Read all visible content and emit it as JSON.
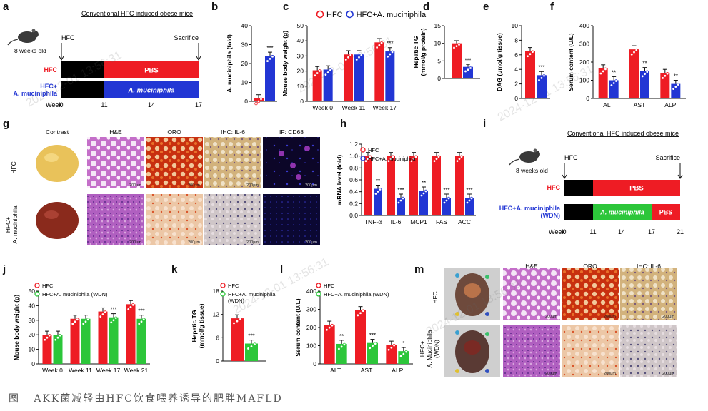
{
  "colors": {
    "hfc": "#ee1c24",
    "akk": "#2236d4",
    "wdn": "#2cc63a",
    "black": "#000000"
  },
  "watermark": "2024-12-01 13:56:31",
  "caption": {
    "prefix": "图",
    "text": "AKK菌减轻由HFC饮食喂养诱导的肥胖MAFLD"
  },
  "panel_a": {
    "letter": "a",
    "title": "Conventional HFC induced obese mice",
    "mouse_label": "8 weeks old",
    "start_label": "HFC",
    "end_label": "Sacrifice",
    "rows": [
      {
        "label": "HFC",
        "segment": "PBS"
      },
      {
        "label": "HFC+\nA. muciniphila",
        "segment": "A. muciniphila"
      }
    ],
    "week_label": "Week",
    "week_ticks": [
      "0",
      "11",
      "14",
      "17"
    ]
  },
  "panel_g": {
    "letter": "g",
    "columns": [
      "Contrast",
      "H&E",
      "ORO",
      "IHC: IL-6",
      "IF: CD68"
    ],
    "rows": [
      "HFC",
      "HFC+\nA. muciniphila"
    ],
    "scale": "200μm"
  },
  "panel_i": {
    "letter": "i",
    "title": "Conventional HFC induced obese mice",
    "mouse_label": "8 weeks old",
    "start_label": "HFC",
    "end_label": "Sacrifice",
    "rows": [
      {
        "label": "HFC",
        "segment": "PBS"
      },
      {
        "label": "HFC+A. muciniphila\n(WDN)",
        "segment_a": "A. muciniphila",
        "segment_b": "PBS"
      }
    ],
    "week_label": "Week",
    "week_ticks": [
      "0",
      "11",
      "14",
      "17",
      "21"
    ]
  },
  "panel_m": {
    "letter": "m",
    "columns": [
      "H&E",
      "ORO",
      "IHC: IL-6"
    ],
    "rows": [
      "HFC",
      "HFC+\nA. Muciniphila\n(WDN)"
    ],
    "scale": "200μm"
  },
  "chart_data": [
    {
      "id": "b",
      "type": "bar",
      "ylabel": "A. muciniphila (fold)",
      "categories": [
        ""
      ],
      "series": [
        {
          "values": [
            1.5
          ],
          "color": "hfc"
        },
        {
          "values": [
            24
          ],
          "color": "akk"
        }
      ],
      "ylim": [
        0,
        40
      ],
      "yticks": [
        0,
        10,
        20,
        30,
        40
      ],
      "stars": [
        "***"
      ]
    },
    {
      "id": "c",
      "type": "bar",
      "ylabel": "Mouse body weight (g)",
      "categories": [
        "Week 0",
        "Week 11",
        "Week 17"
      ],
      "series": [
        {
          "name": "HFC",
          "values": [
            20.5,
            31,
            39
          ],
          "color": "hfc"
        },
        {
          "name": "HFC+A. muciniphila",
          "values": [
            21,
            31,
            33
          ],
          "color": "akk"
        }
      ],
      "ylim": [
        0,
        50
      ],
      "yticks": [
        0,
        10,
        20,
        30,
        40,
        50
      ],
      "stars": [
        "",
        "",
        "***"
      ]
    },
    {
      "id": "d",
      "type": "bar",
      "ylabel": "Hepatic TG\n(mmol/g protein)",
      "categories": [
        ""
      ],
      "series": [
        {
          "values": [
            10
          ],
          "color": "hfc"
        },
        {
          "values": [
            3.3
          ],
          "color": "akk"
        }
      ],
      "ylim": [
        0,
        15
      ],
      "yticks": [
        0,
        5,
        10,
        15
      ],
      "stars": [
        "***"
      ]
    },
    {
      "id": "e",
      "type": "bar",
      "ylabel": "DAG (μmol/g tissue)",
      "categories": [
        ""
      ],
      "series": [
        {
          "values": [
            6.5
          ],
          "color": "hfc"
        },
        {
          "values": [
            3.2
          ],
          "color": "akk"
        }
      ],
      "ylim": [
        0,
        10
      ],
      "yticks": [
        0,
        2,
        4,
        6,
        8,
        10
      ],
      "stars": [
        "***"
      ]
    },
    {
      "id": "f",
      "type": "bar",
      "ylabel": "Serum content (U/L)",
      "categories": [
        "ALT",
        "AST",
        "ALP"
      ],
      "series": [
        {
          "values": [
            165,
            270,
            140
          ],
          "color": "hfc"
        },
        {
          "values": [
            100,
            150,
            80
          ],
          "color": "akk"
        }
      ],
      "ylim": [
        0,
        400
      ],
      "yticks": [
        0,
        100,
        200,
        300,
        400
      ],
      "stars": [
        "**",
        "**",
        "**"
      ]
    },
    {
      "id": "h",
      "type": "bar",
      "ylabel": "mRNA level (fold)",
      "categories": [
        "TNF-α",
        "IL-6",
        "MCP1",
        "FAS",
        "ACC"
      ],
      "series": [
        {
          "name": "HFC",
          "values": [
            1.0,
            1.0,
            1.0,
            1.0,
            1.0
          ],
          "color": "hfc"
        },
        {
          "name": "HFC+A. muciniphila",
          "values": [
            0.45,
            0.3,
            0.42,
            0.3,
            0.3
          ],
          "color": "akk"
        }
      ],
      "ylim": [
        0,
        1.2
      ],
      "yticks": [
        0.0,
        0.2,
        0.4,
        0.6,
        0.8,
        1.0,
        1.2
      ],
      "stars": [
        "**",
        "***",
        "**",
        "***",
        "***"
      ]
    },
    {
      "id": "j",
      "type": "bar",
      "ylabel": "Mouse body weight (g)",
      "categories": [
        "Week 0",
        "Week 11",
        "Week 17",
        "Week 21"
      ],
      "series": [
        {
          "name": "HFC",
          "values": [
            20,
            31,
            36,
            41
          ],
          "color": "hfc"
        },
        {
          "name": "HFC+A. muciniphila (WDN)",
          "values": [
            20,
            31,
            32,
            31
          ],
          "color": "wdn"
        }
      ],
      "ylim": [
        0,
        50
      ],
      "yticks": [
        0,
        10,
        20,
        30,
        40,
        50
      ],
      "stars": [
        "",
        "",
        "***",
        "***"
      ]
    },
    {
      "id": "k",
      "type": "bar",
      "ylabel": "Hepatic TG\n(mmol/g tissue)",
      "categories": [
        ""
      ],
      "series": [
        {
          "name": "HFC",
          "values": [
            11
          ],
          "color": "hfc"
        },
        {
          "name": "HFC+A. muciniphila\n(WDN)",
          "values": [
            4.5
          ],
          "color": "wdn"
        }
      ],
      "ylim": [
        0,
        18
      ],
      "yticks": [
        0,
        6,
        12,
        18
      ],
      "stars": [
        "***"
      ]
    },
    {
      "id": "l",
      "type": "bar",
      "ylabel": "Serum content (U/L)",
      "categories": [
        "ALT",
        "AST",
        "ALP"
      ],
      "series": [
        {
          "name": "HFC",
          "values": [
            215,
            295,
            105
          ],
          "color": "hfc"
        },
        {
          "name": "HFC+A. muciniphila (WDN)",
          "values": [
            110,
            115,
            70
          ],
          "color": "wdn"
        }
      ],
      "ylim": [
        0,
        400
      ],
      "yticks": [
        0,
        100,
        200,
        300,
        400
      ],
      "stars": [
        "**",
        "***",
        "*"
      ]
    }
  ]
}
